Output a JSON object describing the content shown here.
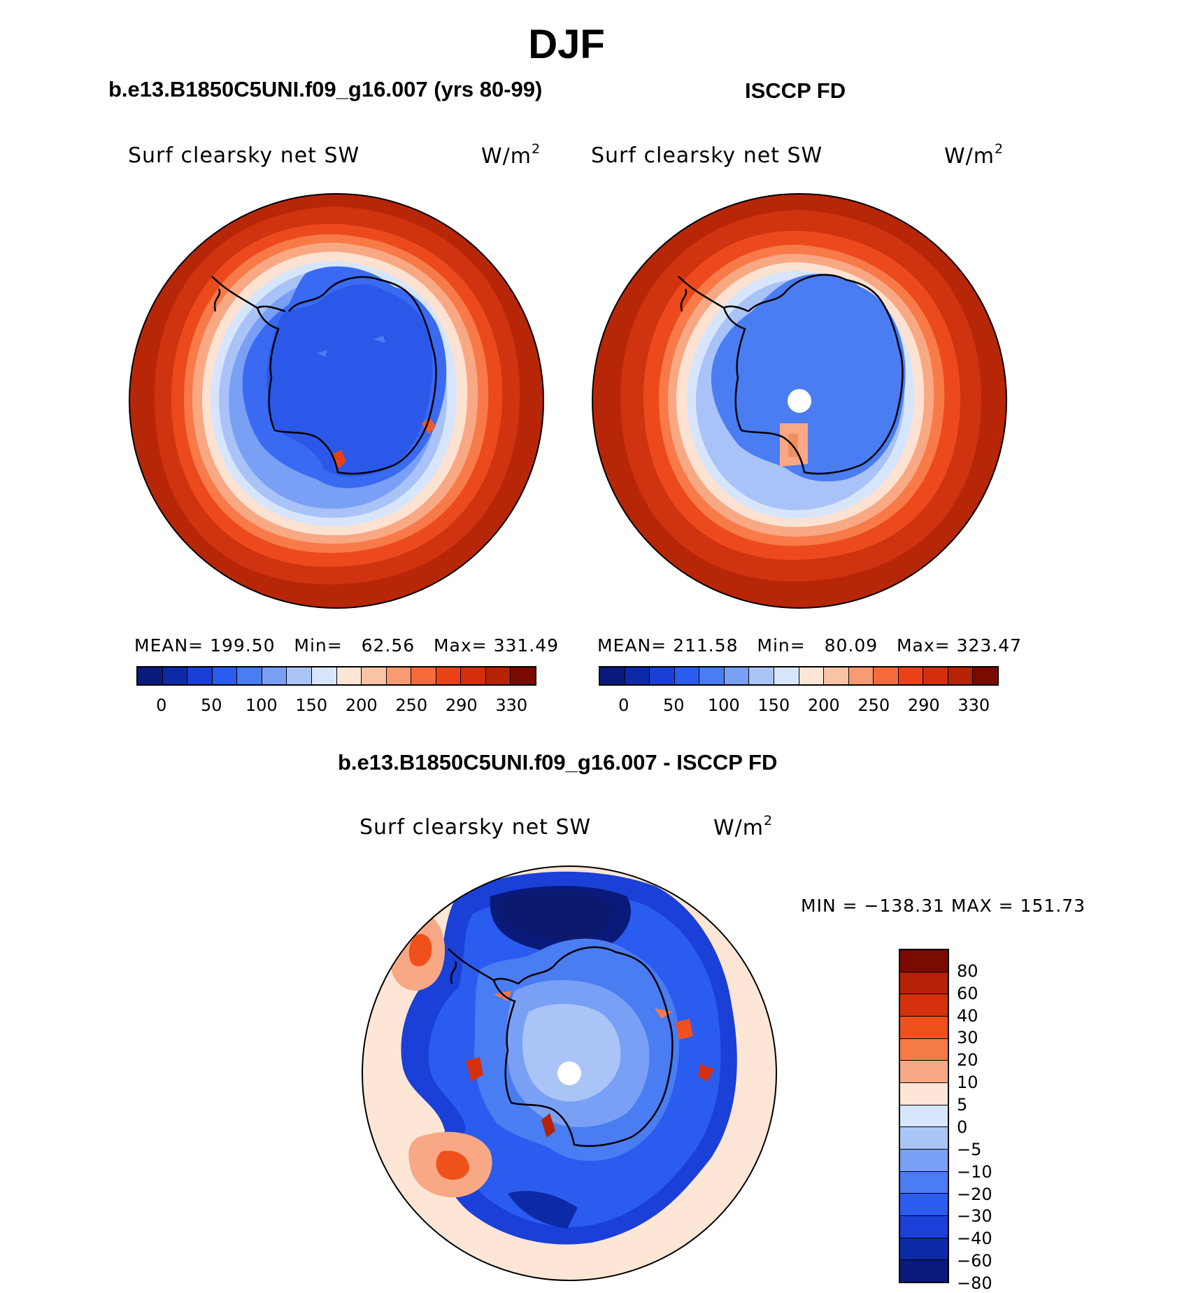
{
  "title": "DJF",
  "variable": "Surf clearsky net SW",
  "units": "W/m",
  "units_superscript": "2",
  "panels": [
    {
      "title": "b.e13.B1850C5UNI.f09_g16.007 (yrs 80-99)",
      "mean_label": "MEAN=",
      "mean": "199.50",
      "min_label": "Min=",
      "min": "62.56",
      "max_label": "Max=",
      "max": "331.49"
    },
    {
      "title": "ISCCP FD",
      "mean_label": "MEAN=",
      "mean": "211.58",
      "min_label": "Min=",
      "min": "80.09",
      "max_label": "Max=",
      "max": "323.47"
    }
  ],
  "diff_panel": {
    "title": "b.e13.B1850C5UNI.f09_g16.007 - ISCCP FD",
    "min_label": "MIN",
    "min": "−138.31",
    "max_label": "MAX",
    "max": "151.73"
  },
  "colorbar_abs": {
    "colors": [
      "#0a1a7a",
      "#0c2aa8",
      "#1a3fd6",
      "#2a5cf0",
      "#4a7cf2",
      "#7aa0f6",
      "#aac4f8",
      "#d8e6fb",
      "#fde6d6",
      "#fbc3a6",
      "#f89a72",
      "#f56b3c",
      "#ec4218",
      "#d42e0c",
      "#b52206",
      "#7a0a00"
    ],
    "tick_labels": [
      "0",
      "50",
      "100",
      "150",
      "200",
      "250",
      "290",
      "330"
    ]
  },
  "colorbar_diff": {
    "colors": [
      "#7a0a00",
      "#b52206",
      "#d4300c",
      "#f0501c",
      "#f57a46",
      "#f8a884",
      "#fde6d6",
      "#d6e6fb",
      "#aac4f8",
      "#7aa0f6",
      "#4a7cf2",
      "#2a5cf0",
      "#1a40d8",
      "#0c2aa8",
      "#0a1a7a"
    ],
    "tick_labels": [
      "80",
      "60",
      "40",
      "30",
      "20",
      "10",
      "5",
      "0",
      "−5",
      "−10",
      "−20",
      "−30",
      "−40",
      "−60",
      "−80"
    ]
  }
}
